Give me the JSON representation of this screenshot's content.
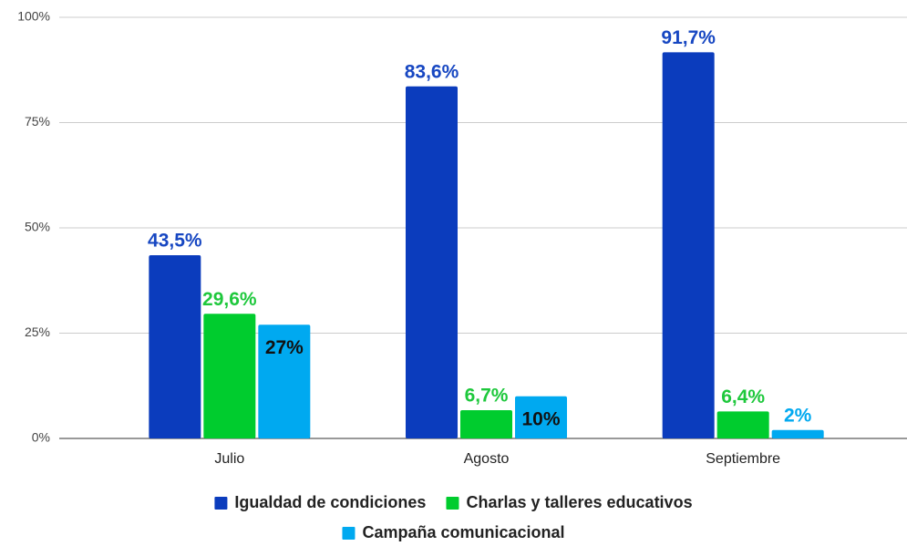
{
  "chart_data": {
    "type": "bar",
    "categories": [
      "Julio",
      "Agosto",
      "Septiembre"
    ],
    "series": [
      {
        "name": "Igualdad de condiciones",
        "color": "#0b3cbd",
        "label_color": "#1747c2",
        "values": [
          43.5,
          83.6,
          91.7
        ],
        "value_labels": [
          "43,5%",
          "83,6%",
          "91,7%"
        ]
      },
      {
        "name": "Charlas y talleres educativos",
        "color": "#00cc2e",
        "label_color": "#1ec83c",
        "values": [
          29.6,
          6.7,
          6.4
        ],
        "value_labels": [
          "29,6%",
          "6,7%",
          "6,4%"
        ]
      },
      {
        "name": "Campaña comunicacional",
        "color": "#00a9f0",
        "label_color": "#00a9f0",
        "values": [
          27,
          10,
          2
        ],
        "value_labels": [
          "27%",
          "10%",
          "2%"
        ]
      }
    ],
    "ylim": [
      0,
      100
    ],
    "yticks": [
      {
        "value": 0,
        "label": "0%"
      },
      {
        "value": 25,
        "label": "25%"
      },
      {
        "value": 50,
        "label": "50%"
      },
      {
        "value": 75,
        "label": "75%"
      },
      {
        "value": 100,
        "label": "100%"
      }
    ],
    "grid": true,
    "legend": "bottom"
  }
}
